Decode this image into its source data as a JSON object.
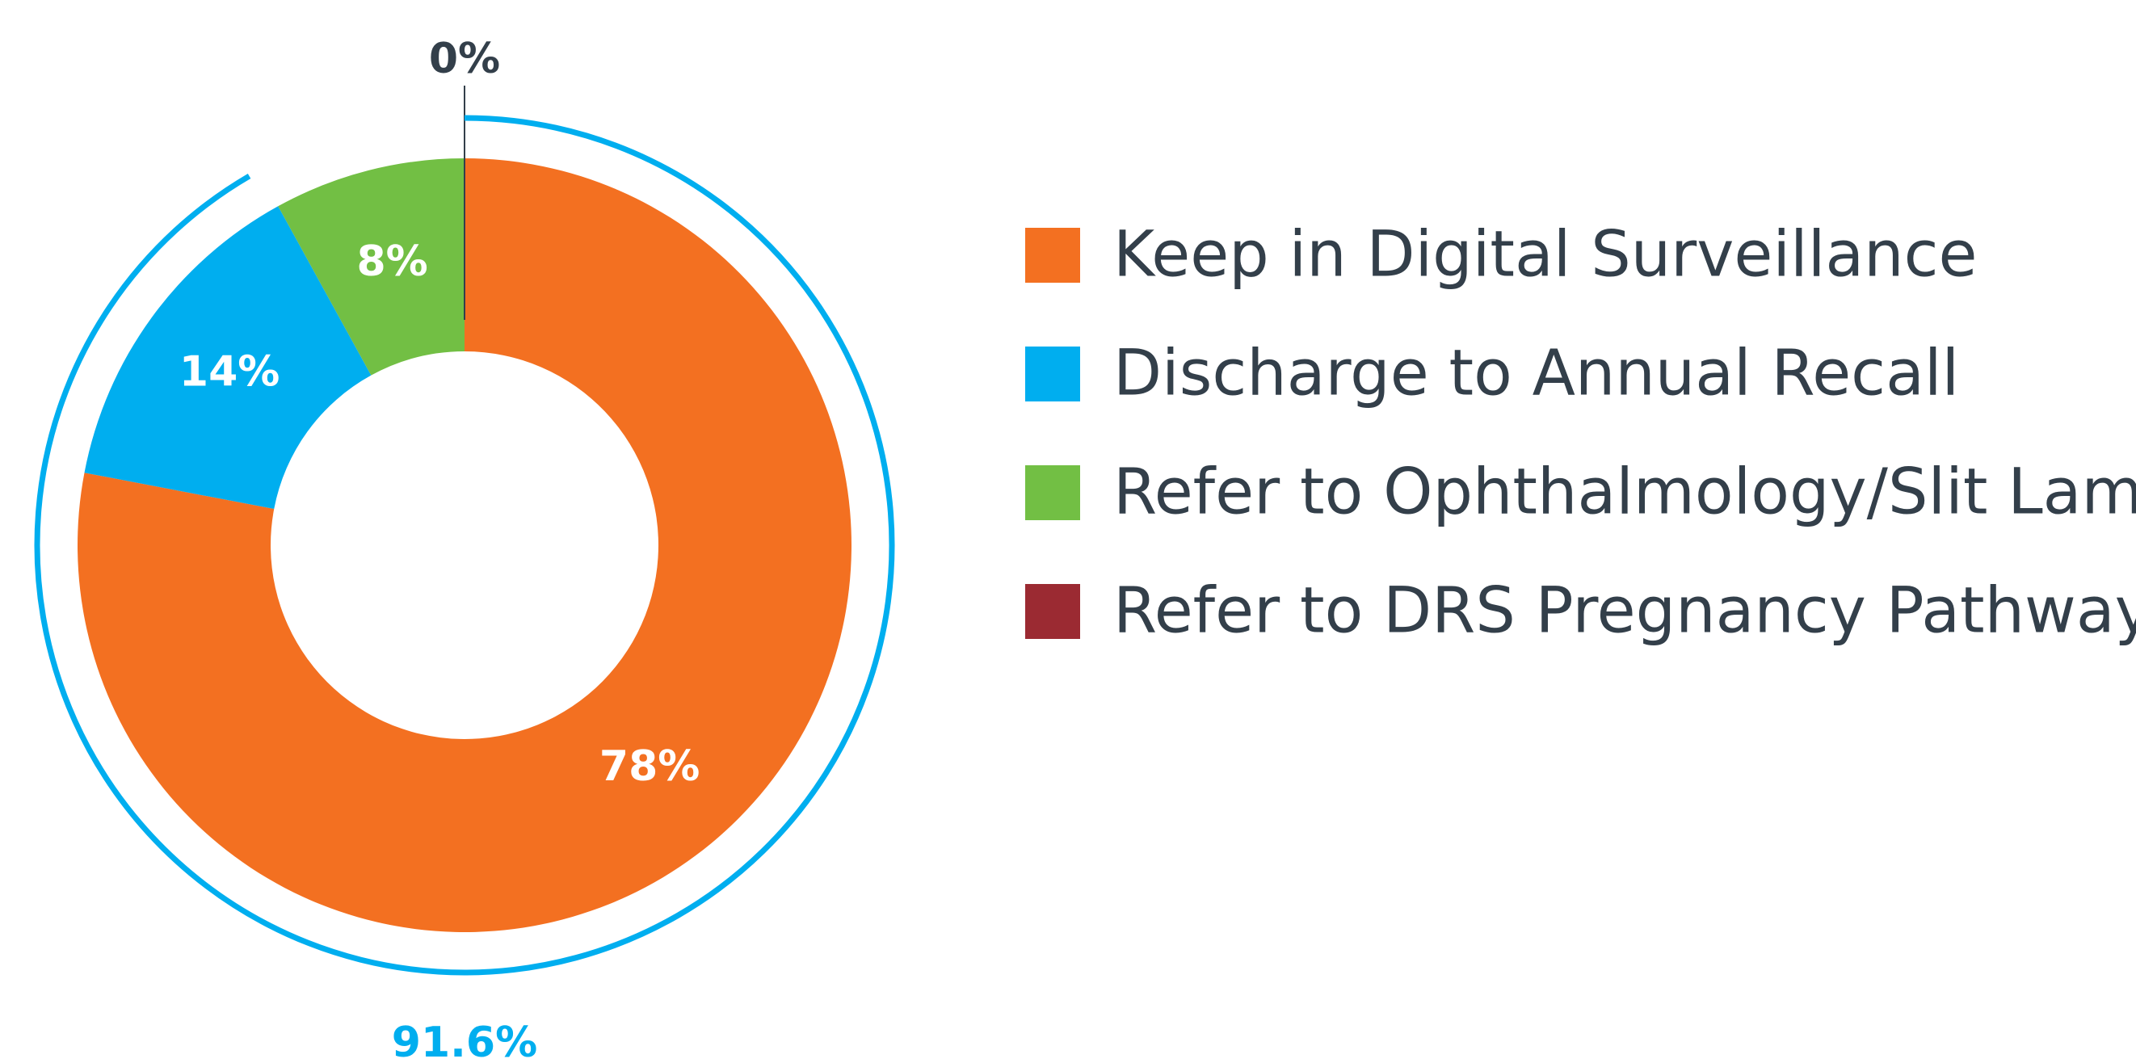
{
  "chart_data": {
    "type": "donut",
    "categories": [
      "Keep in Digital Surveillance",
      "Discharge to Annual Recall",
      "Refer to Ophthalmology/Slit Lamp",
      "Refer to DRS Pregnancy Pathway"
    ],
    "values": [
      78,
      14,
      8,
      0
    ],
    "value_labels": [
      "78%",
      "14%",
      "8%",
      "0%"
    ],
    "colors": [
      "#f37021",
      "#00aeef",
      "#72bf44",
      "#9b2a32"
    ],
    "annotations": [
      {
        "label": "91.6%",
        "value": 91.6,
        "color": "#00aeef"
      }
    ],
    "legend": "right"
  }
}
